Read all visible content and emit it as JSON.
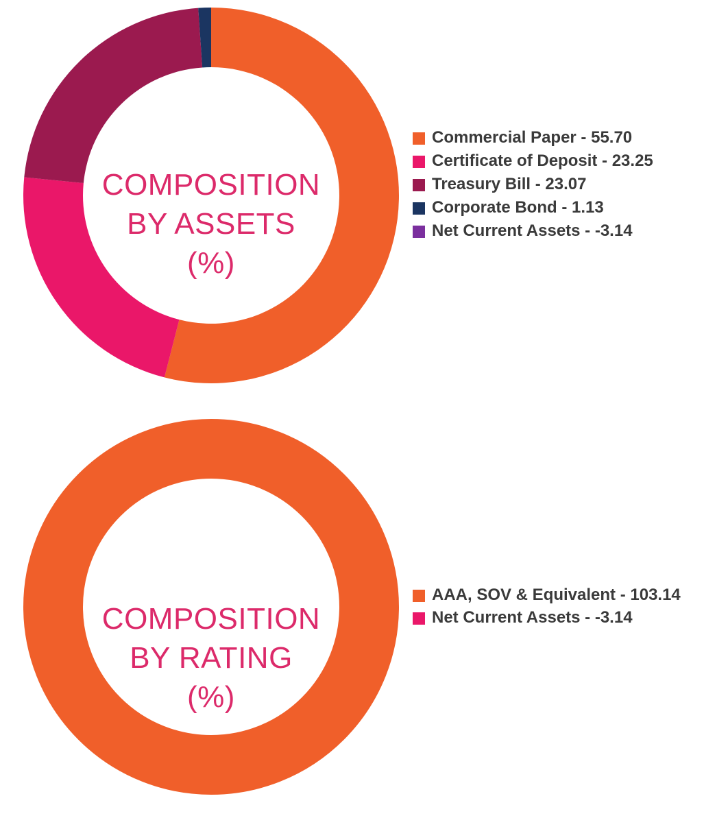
{
  "chart_data": [
    {
      "type": "pie",
      "title": "COMPOSITION BY ASSETS (%)",
      "title_lines": [
        "COMPOSITION",
        "BY ASSETS",
        "(%)"
      ],
      "donut": true,
      "slices": [
        {
          "label": "Commercial Paper",
          "value": 55.7,
          "color": "#f05f2a",
          "legend": "Commercial Paper - 55.70"
        },
        {
          "label": "Certificate of Deposit",
          "value": 23.25,
          "color": "#ea1769",
          "legend": "Certificate of Deposit - 23.25"
        },
        {
          "label": "Treasury Bill",
          "value": 23.07,
          "color": "#9b1a4f",
          "legend": "Treasury Bill - 23.07"
        },
        {
          "label": "Corporate Bond",
          "value": 1.13,
          "color": "#1b3561",
          "legend": "Corporate Bond - 1.13"
        },
        {
          "label": "Net Current Assets",
          "value": -3.14,
          "color": "#7b2f9e",
          "legend": "Net Current Assets - -3.14"
        }
      ],
      "legend_position": "right"
    },
    {
      "type": "pie",
      "title": "COMPOSITION BY RATING (%)",
      "title_lines": [
        "COMPOSITION",
        "BY RATING",
        "(%)"
      ],
      "donut": true,
      "slices": [
        {
          "label": "AAA, SOV & Equivalent",
          "value": 103.14,
          "color": "#f05f2a",
          "legend": "AAA, SOV & Equivalent - 103.14"
        },
        {
          "label": "Net Current Assets",
          "value": -3.14,
          "color": "#ea1769",
          "legend": "Net Current Assets - -3.14"
        }
      ],
      "legend_position": "right"
    }
  ]
}
